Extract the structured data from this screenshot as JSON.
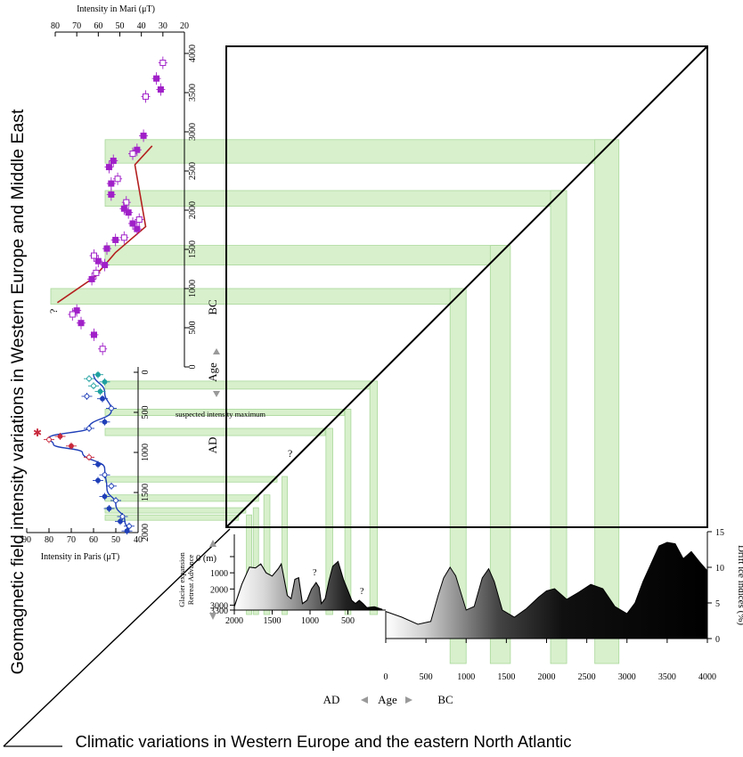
{
  "figure": {
    "left_title": "Geomagnetic field intensity variations in Western Europe and Middle East",
    "bottom_title": "Climatic variations in Western Europe and the eastern North Atlantic",
    "suspected_label": "suspected intensity maximum",
    "question_mark": "?",
    "age_label": "Age",
    "ad_label": "AD",
    "bc_label": "BC",
    "mari_axis_title": "Intensity in Mari (μT)",
    "paris_axis_title": "Intensity in Paris (μT)",
    "glacier_title": "Glacier expansion",
    "glacier_sub": "Retreat  Advance",
    "glacier_depth_unit": "0 (m)",
    "drift_ice_title": "Drift ice indices (%)"
  },
  "colors": {
    "band": "#d8f0cc",
    "band_stroke": "#a9d89a",
    "mari_points": "#a020c8",
    "paris_points": "#1f3fb8",
    "paris_alt1": "#c8283c",
    "paris_alt2": "#20a0a0",
    "trend": "#b42020",
    "curve": "#1f3fb8"
  },
  "chart_data": [
    {
      "type": "scatter",
      "name": "mari",
      "xlabel": "Intensity in Mari (μT)",
      "ylabel": "BC",
      "xlim": [
        80,
        20
      ],
      "ylim": [
        0,
        4000
      ],
      "xticks": [
        80,
        70,
        60,
        50,
        40,
        30,
        20
      ],
      "yticks": [
        0,
        500,
        1000,
        1500,
        2000,
        2500,
        3000,
        3500,
        4000
      ],
      "points": [
        {
          "x": 30,
          "y": 3880
        },
        {
          "x": 33,
          "y": 3680
        },
        {
          "x": 31,
          "y": 3540
        },
        {
          "x": 38,
          "y": 3450
        },
        {
          "x": 39,
          "y": 2950
        },
        {
          "x": 42,
          "y": 2770
        },
        {
          "x": 44,
          "y": 2720
        },
        {
          "x": 53,
          "y": 2630
        },
        {
          "x": 55,
          "y": 2550
        },
        {
          "x": 51,
          "y": 2400
        },
        {
          "x": 54,
          "y": 2340
        },
        {
          "x": 54,
          "y": 2200
        },
        {
          "x": 47,
          "y": 2100
        },
        {
          "x": 48,
          "y": 2020
        },
        {
          "x": 46,
          "y": 1970
        },
        {
          "x": 41,
          "y": 1880
        },
        {
          "x": 44,
          "y": 1830
        },
        {
          "x": 42,
          "y": 1760
        },
        {
          "x": 48,
          "y": 1650
        },
        {
          "x": 52,
          "y": 1620
        },
        {
          "x": 56,
          "y": 1510
        },
        {
          "x": 62,
          "y": 1420
        },
        {
          "x": 60,
          "y": 1350
        },
        {
          "x": 57,
          "y": 1300
        },
        {
          "x": 61,
          "y": 1200
        },
        {
          "x": 63,
          "y": 1120
        },
        {
          "x": 70,
          "y": 720
        },
        {
          "x": 72,
          "y": 670
        },
        {
          "x": 68,
          "y": 560
        },
        {
          "x": 62,
          "y": 410
        },
        {
          "x": 58,
          "y": 230
        }
      ],
      "trend": [
        [
          79,
          820
        ],
        [
          62,
          1140
        ],
        [
          52,
          1460
        ],
        [
          38,
          1790
        ],
        [
          43,
          2580
        ],
        [
          35,
          2820
        ]
      ]
    },
    {
      "type": "scatter",
      "name": "paris",
      "xlabel": "Intensity in Paris (μT)",
      "ylabel": "AD",
      "xlim": [
        90,
        40
      ],
      "ylim": [
        0,
        2000
      ],
      "xticks": [
        90,
        80,
        70,
        60,
        50,
        40
      ],
      "yticks": [
        0,
        500,
        1000,
        1500,
        2000
      ],
      "points": [
        {
          "x": 58,
          "y": 30
        },
        {
          "x": 62,
          "y": 80
        },
        {
          "x": 55,
          "y": 120
        },
        {
          "x": 60,
          "y": 170
        },
        {
          "x": 57,
          "y": 240
        },
        {
          "x": 63,
          "y": 300
        },
        {
          "x": 56,
          "y": 330
        },
        {
          "x": 52,
          "y": 450
        },
        {
          "x": 55,
          "y": 620
        },
        {
          "x": 62,
          "y": 700
        },
        {
          "x": 75,
          "y": 800
        },
        {
          "x": 80,
          "y": 840
        },
        {
          "x": 70,
          "y": 920
        },
        {
          "x": 62,
          "y": 1060
        },
        {
          "x": 58,
          "y": 1150
        },
        {
          "x": 55,
          "y": 1280
        },
        {
          "x": 58,
          "y": 1350
        },
        {
          "x": 52,
          "y": 1420
        },
        {
          "x": 55,
          "y": 1550
        },
        {
          "x": 50,
          "y": 1600
        },
        {
          "x": 53,
          "y": 1700
        },
        {
          "x": 47,
          "y": 1800
        },
        {
          "x": 48,
          "y": 1860
        },
        {
          "x": 44,
          "y": 1920
        },
        {
          "x": 45,
          "y": 1980
        }
      ],
      "curve": [
        [
          60,
          20
        ],
        [
          55,
          250
        ],
        [
          52,
          480
        ],
        [
          62,
          690
        ],
        [
          80,
          820
        ],
        [
          78,
          900
        ],
        [
          65,
          1000
        ],
        [
          55,
          1200
        ],
        [
          54,
          1450
        ],
        [
          50,
          1650
        ],
        [
          46,
          1850
        ],
        [
          44,
          2000
        ]
      ]
    },
    {
      "type": "area",
      "name": "glacier",
      "xlabel": "AD",
      "ylabel": "Glacier expansion",
      "xlim": [
        2000,
        0
      ],
      "ylim": [
        3300,
        0
      ],
      "xticks": [
        2000,
        1500,
        1000,
        500
      ],
      "yticks": [
        0,
        1000,
        2000,
        3000,
        3300
      ],
      "x": [
        2000,
        1900,
        1800,
        1720,
        1650,
        1580,
        1500,
        1420,
        1380,
        1300,
        1250,
        1200,
        1150,
        1100,
        1040,
        980,
        920,
        880,
        850,
        800,
        750,
        700,
        630,
        560,
        500,
        450,
        400,
        350,
        300,
        250,
        150,
        50
      ],
      "values": [
        3100,
        1700,
        650,
        700,
        450,
        1000,
        1200,
        750,
        450,
        2400,
        2600,
        1400,
        1300,
        2900,
        2700,
        2000,
        1600,
        1900,
        2900,
        2600,
        1500,
        600,
        300,
        1400,
        2100,
        2700,
        2900,
        2700,
        2900,
        3150,
        3100,
        3250
      ]
    },
    {
      "type": "area",
      "name": "drift_ice",
      "xlabel": "",
      "ylabel": "Drift ice indices (%)",
      "xlim": [
        0,
        4000
      ],
      "ylim": [
        0,
        15
      ],
      "xticks": [
        0,
        500,
        1000,
        1500,
        2000,
        2500,
        3000,
        3500,
        4000
      ],
      "yticks": [
        0,
        5,
        10,
        15
      ],
      "x": [
        0,
        200,
        400,
        560,
        650,
        720,
        800,
        870,
        1000,
        1100,
        1200,
        1280,
        1350,
        1450,
        1600,
        1750,
        1900,
        2000,
        2100,
        2250,
        2400,
        2550,
        2700,
        2850,
        3000,
        3100,
        3200,
        3300,
        3400,
        3500,
        3600,
        3700,
        3800,
        3900,
        4000
      ],
      "values": [
        3.8,
        3.0,
        2.0,
        2.4,
        6.0,
        8.5,
        10.0,
        8.8,
        4.0,
        4.5,
        8.5,
        9.8,
        8.0,
        4.0,
        3.0,
        4.2,
        5.8,
        6.7,
        7.0,
        5.5,
        6.5,
        7.6,
        7.0,
        4.5,
        3.5,
        5.0,
        8.0,
        10.5,
        13.0,
        13.5,
        13.3,
        11.2,
        12.2,
        10.8,
        9.5
      ]
    }
  ],
  "bands": {
    "bc": [
      [
        2600,
        2900
      ],
      [
        2050,
        2250
      ],
      [
        1300,
        1550
      ],
      [
        800,
        1000
      ]
    ],
    "ad": [
      [
        110,
        210
      ],
      [
        460,
        540
      ],
      [
        700,
        790
      ],
      [
        1300,
        1370
      ],
      [
        1530,
        1610
      ],
      [
        1690,
        1750
      ],
      [
        1780,
        1840
      ]
    ]
  }
}
